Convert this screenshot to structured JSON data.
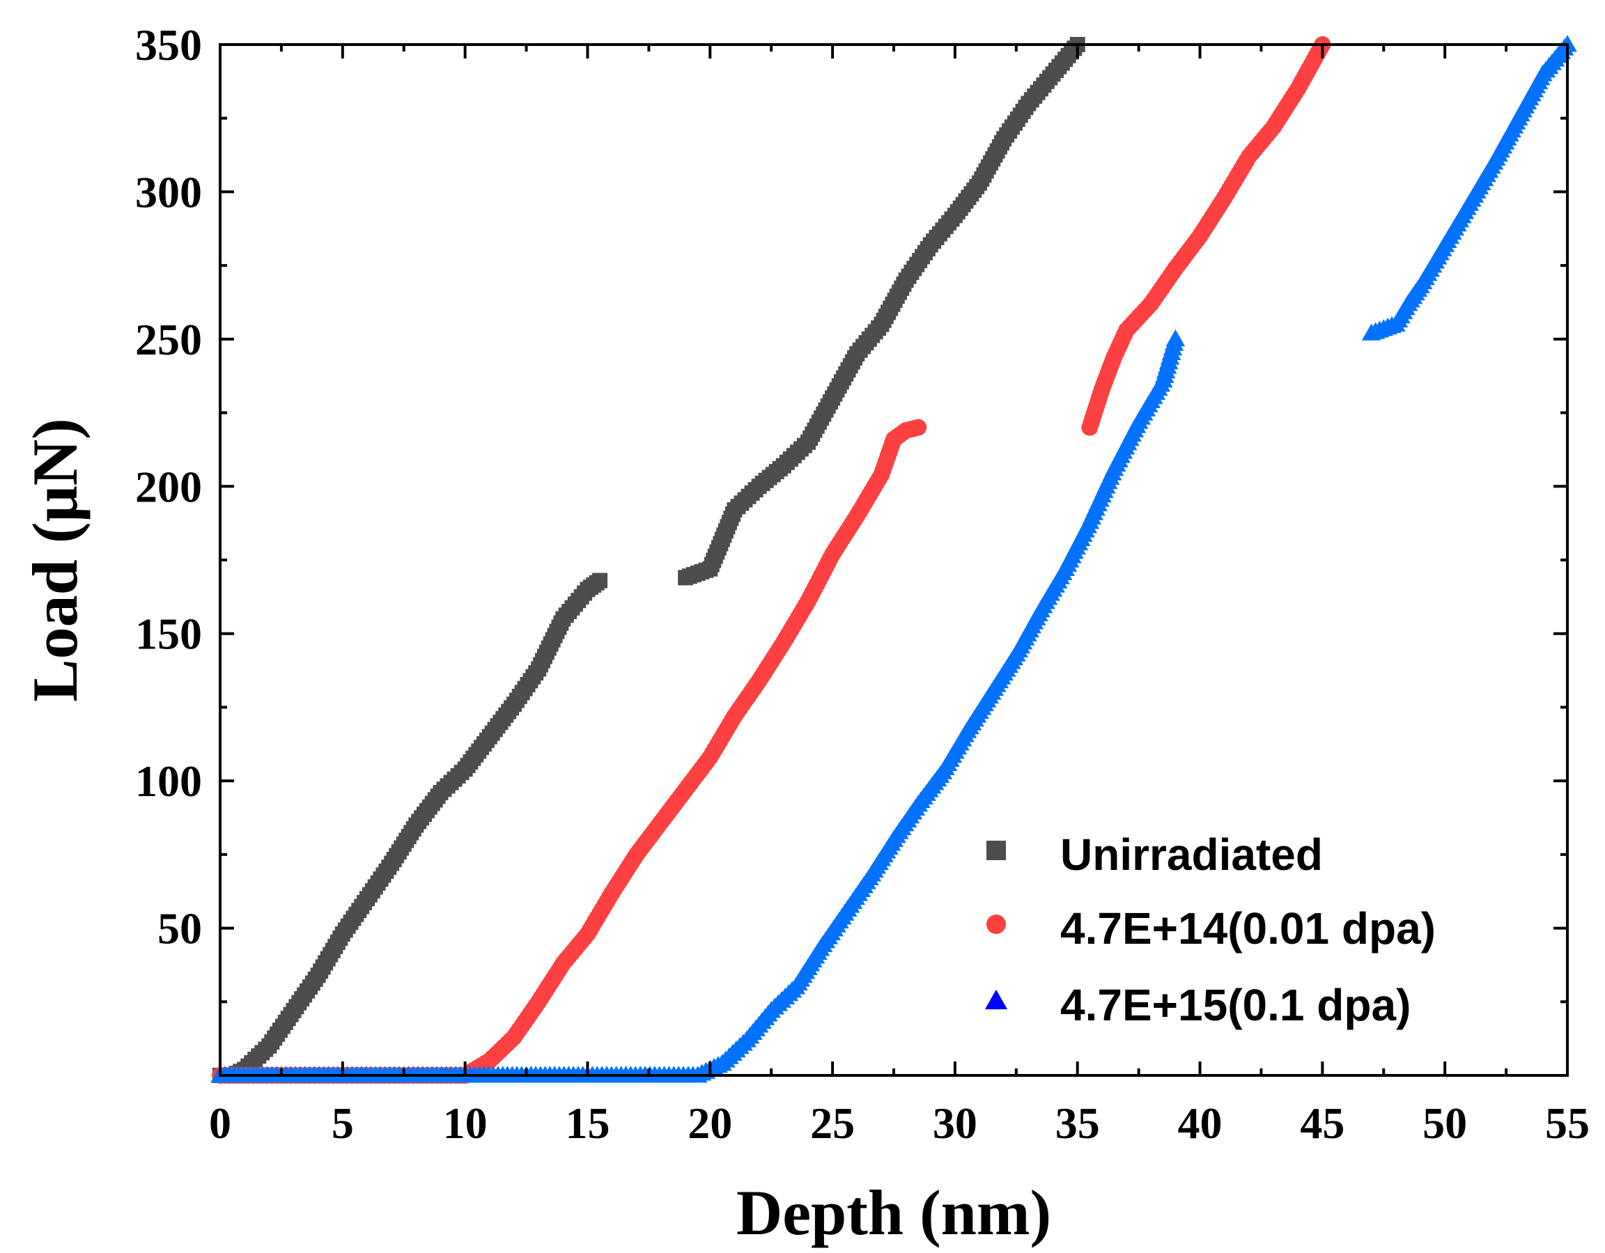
{
  "chart_data": {
    "type": "scatter",
    "title": "",
    "xlabel": "Depth (nm)",
    "ylabel": "Load (μN)",
    "xlim": [
      0,
      55
    ],
    "ylim": [
      0,
      350
    ],
    "x_ticks": [
      0,
      5,
      10,
      15,
      20,
      25,
      30,
      35,
      40,
      45,
      50,
      55
    ],
    "y_ticks": [
      50,
      100,
      150,
      200,
      250,
      300,
      350
    ],
    "legend_position": "bottom-right",
    "series": [
      {
        "name": "Unirradiated",
        "color": "#4d4d4d",
        "marker": "square",
        "segments": [
          [
            [
              0,
              0
            ],
            [
              0.5,
              0
            ],
            [
              1,
              2
            ],
            [
              2,
              10
            ],
            [
              3,
              22
            ],
            [
              4,
              34
            ],
            [
              5,
              48
            ],
            [
              6,
              60
            ],
            [
              7,
              72
            ],
            [
              8,
              85
            ],
            [
              9,
              96
            ],
            [
              10,
              104
            ],
            [
              11,
              115
            ],
            [
              12,
              126
            ],
            [
              13,
              138
            ],
            [
              14,
              155
            ],
            [
              15,
              165
            ],
            [
              15.5,
              168
            ]
          ],
          [
            [
              19,
              169
            ],
            [
              20,
              172
            ],
            [
              20.5,
              182
            ],
            [
              21,
              192
            ],
            [
              22,
              200
            ],
            [
              23,
              207
            ],
            [
              24,
              215
            ],
            [
              25,
              230
            ],
            [
              26,
              245
            ],
            [
              27,
              255
            ],
            [
              28,
              270
            ],
            [
              29,
              282
            ],
            [
              30,
              292
            ],
            [
              31,
              303
            ],
            [
              32,
              318
            ],
            [
              33,
              330
            ],
            [
              34,
              340
            ],
            [
              35,
              350
            ]
          ]
        ]
      },
      {
        "name": "4.7E+14(0.01 dpa)",
        "color": "#ff4040",
        "marker": "circle",
        "segments": [
          [
            [
              0,
              0
            ],
            [
              5,
              0
            ],
            [
              10,
              0
            ],
            [
              11,
              5
            ],
            [
              12,
              13
            ],
            [
              13,
              25
            ],
            [
              14,
              38
            ],
            [
              15,
              48
            ],
            [
              16,
              62
            ],
            [
              17,
              75
            ],
            [
              18,
              86
            ],
            [
              19,
              97
            ],
            [
              20,
              108
            ],
            [
              21,
              122
            ],
            [
              22,
              134
            ],
            [
              23,
              147
            ],
            [
              24,
              161
            ],
            [
              25,
              177
            ],
            [
              26,
              190
            ],
            [
              27,
              204
            ],
            [
              27.5,
              216
            ],
            [
              28,
              219
            ],
            [
              28.5,
              220
            ]
          ],
          [
            [
              35.5,
              220
            ],
            [
              36,
              233
            ],
            [
              36.5,
              244
            ],
            [
              37,
              253
            ],
            [
              38,
              262
            ],
            [
              39,
              274
            ],
            [
              40,
              285
            ],
            [
              41,
              298
            ],
            [
              42,
              312
            ],
            [
              43,
              322
            ],
            [
              44,
              335
            ],
            [
              45,
              350
            ]
          ]
        ]
      },
      {
        "name": "4.7E+15(0.1 dpa)",
        "color": "#0072ff",
        "legend_color": "#0000ff",
        "marker": "triangle",
        "segments": [
          [
            [
              0,
              0
            ],
            [
              5,
              0
            ],
            [
              10,
              0
            ],
            [
              15,
              0
            ],
            [
              19.5,
              0
            ],
            [
              20.5,
              4
            ],
            [
              21.5,
              12
            ],
            [
              22.5,
              22
            ],
            [
              23.5,
              30
            ],
            [
              24.5,
              43
            ],
            [
              25.5,
              55
            ],
            [
              26.5,
              67
            ],
            [
              27.5,
              80
            ],
            [
              28.5,
              92
            ],
            [
              29.5,
              103
            ],
            [
              30.5,
              117
            ],
            [
              31.5,
              130
            ],
            [
              32.5,
              143
            ],
            [
              33.5,
              158
            ],
            [
              34.5,
              172
            ],
            [
              35.5,
              188
            ],
            [
              36.5,
              206
            ],
            [
              37.5,
              222
            ],
            [
              38.5,
              236
            ],
            [
              39,
              250
            ]
          ],
          [
            [
              47,
              252
            ],
            [
              48,
              255
            ],
            [
              48.5,
              262
            ],
            [
              49,
              268
            ],
            [
              50,
              282
            ],
            [
              51,
              296
            ],
            [
              52,
              310
            ],
            [
              53,
              325
            ],
            [
              54,
              340
            ],
            [
              55,
              350
            ]
          ]
        ]
      }
    ]
  }
}
